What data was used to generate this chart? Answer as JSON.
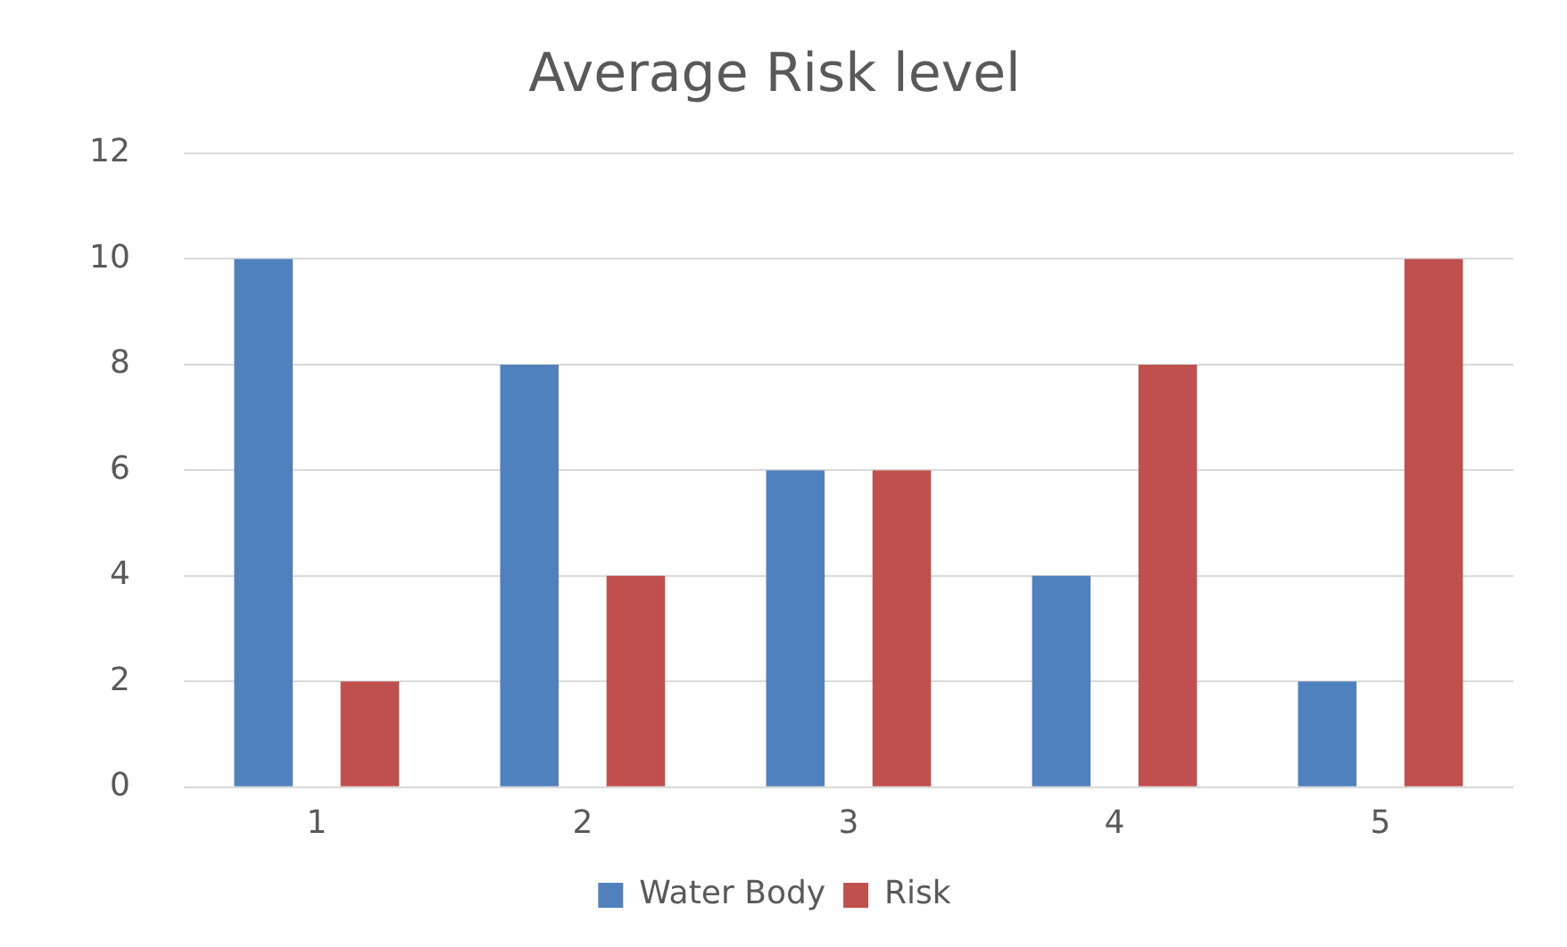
{
  "chart_data": {
    "type": "bar",
    "title": "Average Risk level",
    "categories": [
      "1",
      "2",
      "3",
      "4",
      "5"
    ],
    "series": [
      {
        "name": "Water Body",
        "color": "#4f81bd",
        "values": [
          10,
          8,
          6,
          4,
          2
        ]
      },
      {
        "name": "Risk",
        "color": "#c0504d",
        "values": [
          2,
          4,
          6,
          8,
          10
        ]
      }
    ],
    "ylim": [
      0,
      12
    ],
    "yticks": [
      0,
      2,
      4,
      6,
      8,
      10,
      12
    ],
    "grid": "y",
    "legend": "bottom"
  }
}
